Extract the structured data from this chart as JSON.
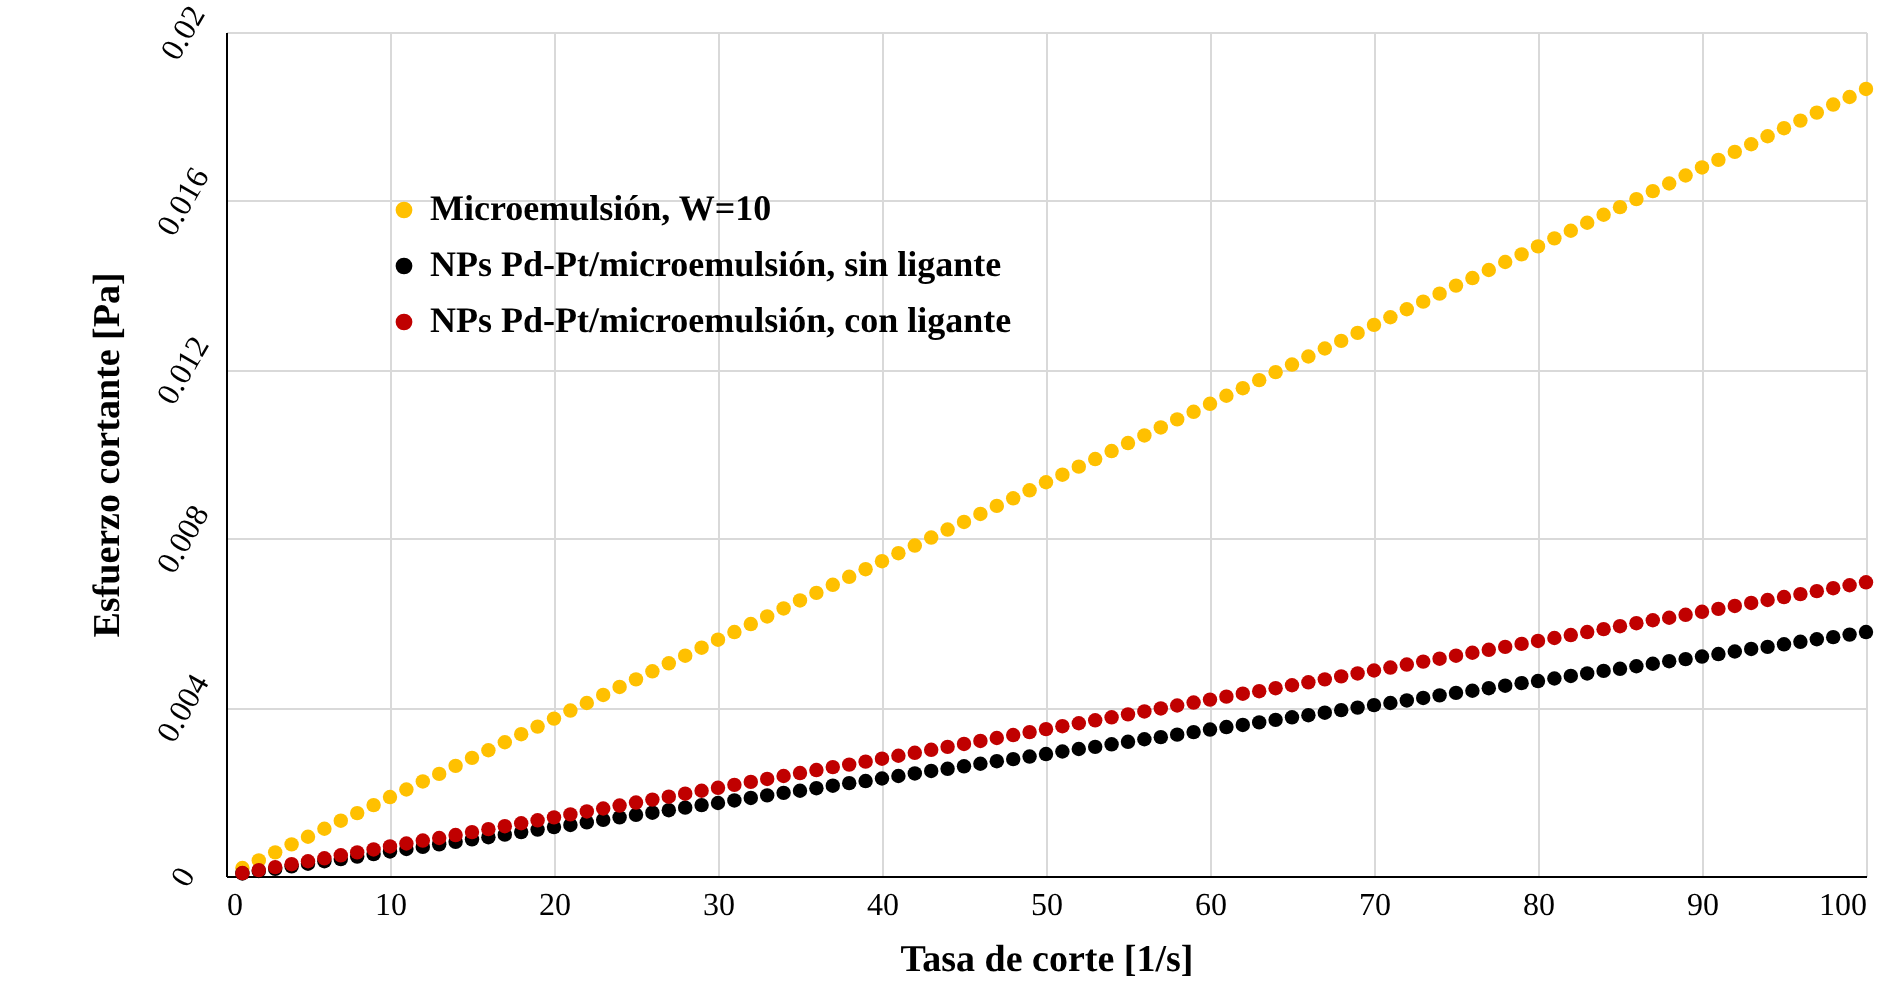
{
  "chart_data": {
    "type": "scatter",
    "xlabel": "Tasa de corte [1/s]",
    "ylabel": "Esfuerzo cortante [Pa]",
    "x": [
      1,
      2,
      3,
      4,
      5,
      6,
      7,
      8,
      9,
      10,
      11,
      12,
      13,
      14,
      15,
      16,
      17,
      18,
      19,
      20,
      21,
      22,
      23,
      24,
      25,
      26,
      27,
      28,
      29,
      30,
      31,
      32,
      33,
      34,
      35,
      36,
      37,
      38,
      39,
      40,
      41,
      42,
      43,
      44,
      45,
      46,
      47,
      48,
      49,
      50,
      51,
      52,
      53,
      54,
      55,
      56,
      57,
      58,
      59,
      60,
      61,
      62,
      63,
      64,
      65,
      66,
      67,
      68,
      69,
      70,
      71,
      72,
      73,
      74,
      75,
      76,
      77,
      78,
      79,
      80,
      81,
      82,
      83,
      84,
      85,
      86,
      87,
      88,
      89,
      90,
      91,
      92,
      93,
      94,
      95,
      96,
      97,
      98,
      99,
      100
    ],
    "xlim": [
      0,
      100
    ],
    "xticks": [
      0,
      10,
      20,
      30,
      40,
      50,
      60,
      70,
      80,
      90,
      100
    ],
    "ylim": [
      0,
      0.02
    ],
    "yticks": [
      0,
      0.004,
      0.008,
      0.012,
      0.016,
      0.02
    ],
    "grid": true,
    "legend": "top left",
    "marker": "circle",
    "series": [
      {
        "name": "Microemulsión, W=10",
        "color": "#ffc000",
        "values": [
          0.00019,
          0.00037,
          0.00056,
          0.00075,
          0.00093,
          0.00112,
          0.00131,
          0.00149,
          0.00168,
          0.00187,
          0.00205,
          0.00224,
          0.00242,
          0.00261,
          0.0028,
          0.00298,
          0.00317,
          0.00336,
          0.00354,
          0.00373,
          0.00392,
          0.0041,
          0.00429,
          0.00448,
          0.00466,
          0.00485,
          0.00504,
          0.00522,
          0.00541,
          0.0056,
          0.00578,
          0.00597,
          0.00615,
          0.00634,
          0.00653,
          0.00671,
          0.0069,
          0.00709,
          0.00727,
          0.00746,
          0.00765,
          0.00783,
          0.00802,
          0.00821,
          0.00839,
          0.00858,
          0.00877,
          0.00895,
          0.00914,
          0.00933,
          0.00951,
          0.0097,
          0.00988,
          0.01007,
          0.01026,
          0.01044,
          0.01063,
          0.01082,
          0.011,
          0.01119,
          0.01138,
          0.01156,
          0.01175,
          0.01194,
          0.01212,
          0.01231,
          0.0125,
          0.01268,
          0.01287,
          0.01306,
          0.01324,
          0.01343,
          0.01361,
          0.0138,
          0.01399,
          0.01417,
          0.01436,
          0.01455,
          0.01473,
          0.01492,
          0.01511,
          0.01529,
          0.01548,
          0.01567,
          0.01585,
          0.01604,
          0.01623,
          0.01641,
          0.0166,
          0.01679,
          0.01697,
          0.01716,
          0.01734,
          0.01753,
          0.01772,
          0.0179,
          0.01809,
          0.01828,
          0.01846,
          0.01865
        ]
      },
      {
        "name": "NPs Pd-Pt/microemulsión, sin ligante",
        "color": "#000000",
        "values": [
          6e-05,
          0.00012,
          0.00017,
          0.00023,
          0.00029,
          0.00035,
          0.0004,
          0.00046,
          0.00052,
          0.00058,
          0.00064,
          0.00069,
          0.00075,
          0.00081,
          0.00087,
          0.00092,
          0.00098,
          0.00104,
          0.0011,
          0.00116,
          0.00121,
          0.00127,
          0.00133,
          0.00139,
          0.00145,
          0.0015,
          0.00156,
          0.00162,
          0.00168,
          0.00173,
          0.00179,
          0.00185,
          0.00191,
          0.00197,
          0.00202,
          0.00208,
          0.00214,
          0.0022,
          0.00225,
          0.00231,
          0.00237,
          0.00243,
          0.00249,
          0.00254,
          0.0026,
          0.00266,
          0.00272,
          0.00277,
          0.00283,
          0.00289,
          0.00295,
          0.00301,
          0.00306,
          0.00312,
          0.00318,
          0.00324,
          0.00329,
          0.00335,
          0.00341,
          0.00347,
          0.00353,
          0.00358,
          0.00364,
          0.0037,
          0.00376,
          0.00381,
          0.00387,
          0.00393,
          0.00399,
          0.00405,
          0.0041,
          0.00416,
          0.00422,
          0.00428,
          0.00434,
          0.00439,
          0.00445,
          0.00451,
          0.00457,
          0.00462,
          0.00468,
          0.00474,
          0.0048,
          0.00486,
          0.00491,
          0.00497,
          0.00503,
          0.00509,
          0.00514,
          0.0052,
          0.00526,
          0.00532,
          0.00538,
          0.00543,
          0.00549,
          0.00555,
          0.00561,
          0.00566,
          0.00572,
          0.00578
        ]
      },
      {
        "name": "NPs Pd-Pt/microemulsión, con ligante",
        "color": "#c00000",
        "values": [
          7e-05,
          0.00014,
          0.00021,
          0.00028,
          0.00035,
          0.00042,
          0.00049,
          0.00056,
          0.00063,
          0.0007,
          0.00077,
          0.00084,
          0.0009,
          0.00097,
          0.00104,
          0.00111,
          0.00118,
          0.00125,
          0.00132,
          0.00139,
          0.00146,
          0.00153,
          0.0016,
          0.00167,
          0.00174,
          0.00181,
          0.00188,
          0.00195,
          0.00202,
          0.00209,
          0.00216,
          0.00223,
          0.0023,
          0.00237,
          0.00244,
          0.00251,
          0.00258,
          0.00264,
          0.00271,
          0.00278,
          0.00285,
          0.00292,
          0.00299,
          0.00306,
          0.00313,
          0.0032,
          0.00327,
          0.00334,
          0.00341,
          0.00348,
          0.00355,
          0.00362,
          0.00369,
          0.00376,
          0.00383,
          0.0039,
          0.00397,
          0.00404,
          0.00411,
          0.00418,
          0.00425,
          0.00432,
          0.00438,
          0.00445,
          0.00452,
          0.00459,
          0.00466,
          0.00473,
          0.0048,
          0.00487,
          0.00494,
          0.00501,
          0.00508,
          0.00515,
          0.00522,
          0.00529,
          0.00536,
          0.00543,
          0.0055,
          0.00557,
          0.00564,
          0.00571,
          0.00578,
          0.00585,
          0.00592,
          0.00599,
          0.00606,
          0.00612,
          0.00619,
          0.00626,
          0.00633,
          0.0064,
          0.00647,
          0.00654,
          0.00661,
          0.00668,
          0.00675,
          0.00682,
          0.00689,
          0.00696
        ]
      }
    ]
  }
}
